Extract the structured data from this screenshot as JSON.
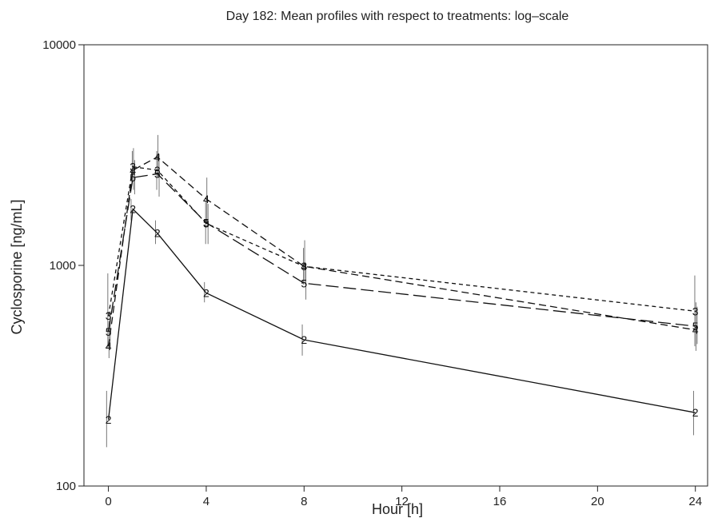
{
  "chart_data": {
    "type": "line",
    "title": "Day 182: Mean profiles with respect to treatments: log–scale",
    "xlabel": "Hour [h]",
    "ylabel": "Cyclosporine [ng/mL]",
    "xlim": [
      -1,
      24.5
    ],
    "ylim": [
      100,
      10000
    ],
    "yscale": "log",
    "xticks": [
      0,
      4,
      8,
      12,
      16,
      20,
      24
    ],
    "yticks": [
      100,
      1000,
      10000
    ],
    "xtick_labels": [
      "0",
      "4",
      "8",
      "12",
      "16",
      "20",
      "24"
    ],
    "ytick_labels": [
      "100",
      "1000",
      "10000"
    ],
    "grid": false,
    "legend": "none",
    "x": [
      0,
      1,
      2,
      4,
      8,
      24
    ],
    "series": [
      {
        "marker": "2",
        "linestyle": "solid",
        "values": [
          200,
          1800,
          1400,
          750,
          460,
          215
        ],
        "err_low": [
          150,
          1600,
          1250,
          680,
          390,
          170
        ],
        "err_high": [
          270,
          2000,
          1600,
          840,
          540,
          270
        ]
      },
      {
        "marker": "3",
        "linestyle": "dotted",
        "values": [
          590,
          2800,
          2700,
          1550,
          990,
          620
        ],
        "err_low": [
          420,
          2400,
          2200,
          1250,
          820,
          430
        ],
        "err_high": [
          920,
          3300,
          3300,
          1950,
          1200,
          900
        ]
      },
      {
        "marker": "4",
        "linestyle": "dashed",
        "values": [
          430,
          2700,
          3100,
          2000,
          990,
          510
        ],
        "err_low": [
          380,
          2200,
          2500,
          1550,
          820,
          410
        ],
        "err_high": [
          560,
          3400,
          3900,
          2500,
          1300,
          680
        ]
      },
      {
        "marker": "5",
        "linestyle": "longdash",
        "values": [
          500,
          2500,
          2600,
          1560,
          830,
          530
        ],
        "err_low": [
          420,
          2100,
          2050,
          1250,
          700,
          440
        ],
        "err_high": [
          620,
          3000,
          3200,
          1900,
          1000,
          650
        ]
      }
    ]
  }
}
